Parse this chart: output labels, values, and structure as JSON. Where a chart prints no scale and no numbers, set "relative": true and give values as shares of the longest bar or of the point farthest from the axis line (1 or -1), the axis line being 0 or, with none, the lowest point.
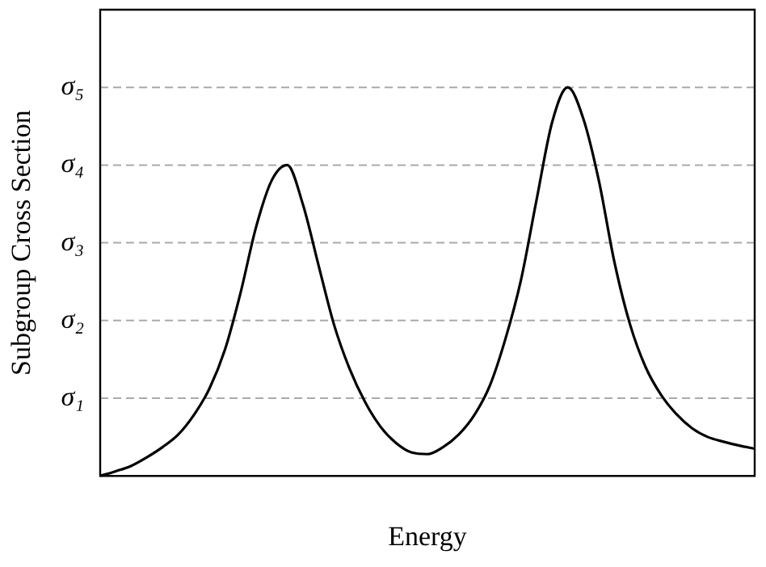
{
  "chart_data": {
    "type": "line",
    "xlabel": "Energy",
    "ylabel": "Subgroup Cross Section",
    "relative": true,
    "categories": [
      null,
      null,
      null,
      null,
      null,
      null,
      null,
      null,
      null,
      null,
      null,
      null,
      null,
      null,
      null,
      null,
      null,
      null,
      null,
      null,
      null,
      null,
      null,
      null,
      null,
      null,
      null,
      null,
      null,
      null,
      null,
      null,
      null,
      null,
      null,
      null,
      null,
      null,
      null,
      null,
      null,
      null,
      null
    ],
    "series": [
      {
        "color": "#000000",
        "values": [
          0,
          0.012,
          0.026,
          0.048,
          0.074,
          0.106,
          0.156,
          0.224,
          0.324,
          0.47,
          0.64,
          0.76,
          0.8,
          0.7,
          0.544,
          0.39,
          0.276,
          0.19,
          0.126,
          0.084,
          0.06,
          0.056,
          0.074,
          0.106,
          0.156,
          0.232,
          0.352,
          0.504,
          0.71,
          0.91,
          1,
          0.92,
          0.76,
          0.55,
          0.39,
          0.28,
          0.208,
          0.158,
          0.122,
          0.1,
          0.088,
          0.078,
          0.07
        ]
      }
    ],
    "ref_lines": [
      {
        "axis": "y",
        "value": 0.2,
        "label": "σ₁",
        "color": "#aaaaaa",
        "line_style": "dashed"
      },
      {
        "axis": "y",
        "value": 0.4,
        "label": "σ₂",
        "color": "#aaaaaa",
        "line_style": "dashed"
      },
      {
        "axis": "y",
        "value": 0.6,
        "label": "σ₃",
        "color": "#aaaaaa",
        "line_style": "dashed"
      },
      {
        "axis": "y",
        "value": 0.8,
        "label": "σ₄",
        "color": "#aaaaaa",
        "line_style": "dashed"
      },
      {
        "axis": "y",
        "value": 1,
        "label": "σ₅",
        "color": "#aaaaaa",
        "line_style": "dashed"
      }
    ],
    "legend": false,
    "marker": "none",
    "line_style": "solid"
  }
}
